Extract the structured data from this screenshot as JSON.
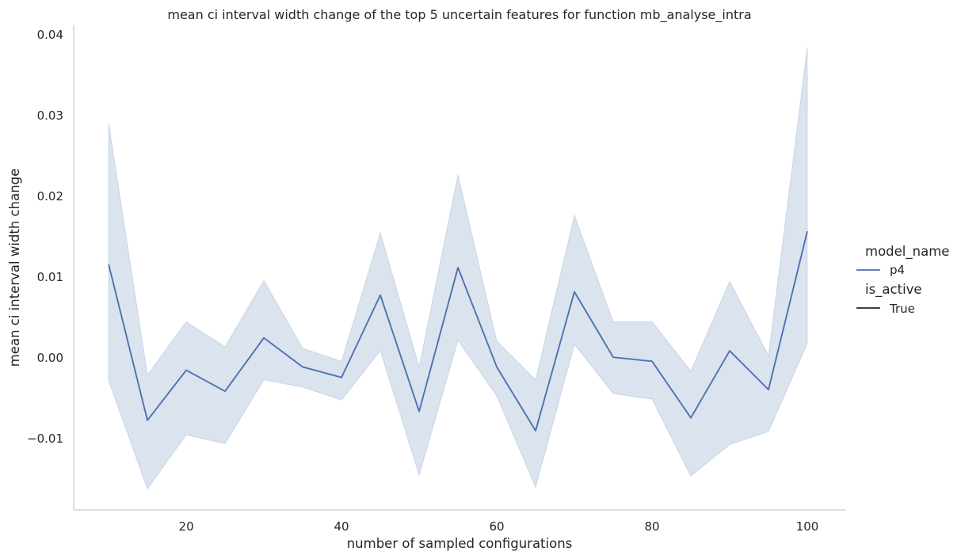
{
  "chart_data": {
    "type": "line",
    "title": "mean ci interval width change of the top 5 uncertain features for function mb_analyse_intra",
    "xlabel": "number of sampled configurations",
    "ylabel": "mean ci interval width change",
    "xlim": [
      5.5,
      105
    ],
    "ylim": [
      -0.0188,
      0.0412
    ],
    "x_ticks": [
      20,
      40,
      60,
      80,
      100
    ],
    "y_ticks": [
      -0.01,
      0.0,
      0.01,
      0.02,
      0.03,
      0.04
    ],
    "x_tick_labels": [
      "20",
      "40",
      "60",
      "80",
      "100"
    ],
    "y_tick_labels": [
      "−0.01",
      "0.00",
      "0.01",
      "0.02",
      "0.03",
      "0.04"
    ],
    "grid": false,
    "legend_position": "right",
    "series": [
      {
        "name": "p4",
        "color": "#4c72b0",
        "band_color": "#4c72b0",
        "x": [
          10,
          15,
          20,
          25,
          30,
          35,
          40,
          45,
          50,
          55,
          60,
          65,
          70,
          75,
          80,
          85,
          90,
          95,
          100
        ],
        "y": [
          0.0116,
          -0.0077,
          -0.0015,
          -0.0041,
          0.0025,
          -0.0011,
          -0.0024,
          0.0078,
          -0.0066,
          0.0112,
          -0.0011,
          -0.009,
          0.0082,
          0.0001,
          -0.0004,
          -0.0074,
          0.0009,
          -0.0039,
          0.0157
        ],
        "ci_low": [
          -0.0028,
          -0.0162,
          -0.0095,
          -0.0106,
          -0.0027,
          -0.0036,
          -0.0052,
          0.0009,
          -0.0145,
          0.0022,
          -0.0047,
          -0.016,
          0.0017,
          -0.0044,
          -0.0051,
          -0.0146,
          -0.0107,
          -0.0091,
          0.0018
        ],
        "ci_high": [
          0.0291,
          -0.0021,
          0.0045,
          0.0014,
          0.0096,
          0.0012,
          -0.0004,
          0.0155,
          -0.0011,
          0.0227,
          0.0021,
          -0.0027,
          0.0177,
          0.0045,
          0.0045,
          -0.0016,
          0.0095,
          0.0003,
          0.0385
        ]
      }
    ],
    "legend": {
      "hue_title": "model_name",
      "hue_entries": [
        {
          "label": "p4",
          "color": "#4c72b0"
        }
      ],
      "style_title": "is_active",
      "style_entries": [
        {
          "label": "True",
          "color": "#262626"
        }
      ]
    }
  }
}
